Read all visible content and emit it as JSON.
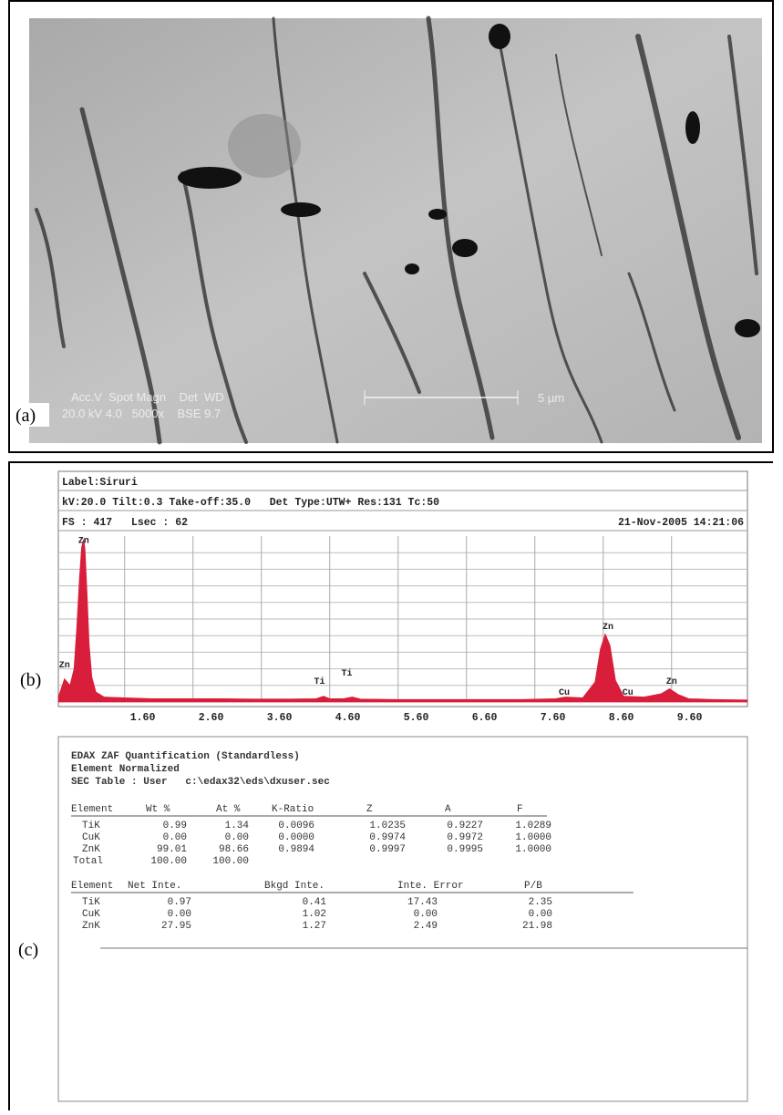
{
  "panels": {
    "a": "(a)",
    "b": "(b)",
    "c": "(c)"
  },
  "sem_image": {
    "header": "Acc.V  Spot Magn    Det  WD",
    "values": "20.0 kV 4.0   5000x    BSE 9.7",
    "scale_bar": "5 µm"
  },
  "chart_data": {
    "type": "area",
    "header": {
      "label": "Label:Siruri",
      "settings": "kV:20.0 Tilt:0.3 Take-off:35.0   Det Type:UTW+ Res:131 Tc:50",
      "acquisition": "FS : 417   Lsec : 62",
      "date": "21-Nov-2005 14:21:06"
    },
    "x": [
      0.63,
      0.72,
      0.8,
      0.86,
      0.9,
      0.94,
      0.97,
      1.0,
      1.02,
      1.05,
      1.08,
      1.12,
      1.18,
      1.3,
      1.6,
      2.0,
      2.5,
      3.0,
      3.5,
      4.0,
      4.4,
      4.51,
      4.6,
      4.8,
      4.93,
      5.05,
      5.6,
      6.2,
      6.8,
      7.4,
      7.9,
      8.05,
      8.3,
      8.48,
      8.56,
      8.63,
      8.7,
      8.78,
      8.9,
      9.2,
      9.45,
      9.57,
      9.7,
      9.85,
      10.2,
      10.71
    ],
    "values": [
      0.3,
      1.4,
      1.0,
      2.0,
      4.5,
      7.5,
      9.3,
      9.8,
      9.2,
      6.5,
      3.5,
      1.5,
      0.6,
      0.3,
      0.25,
      0.2,
      0.2,
      0.2,
      0.18,
      0.18,
      0.2,
      0.35,
      0.2,
      0.2,
      0.3,
      0.18,
      0.15,
      0.15,
      0.15,
      0.15,
      0.2,
      0.3,
      0.25,
      1.2,
      3.2,
      4.1,
      3.4,
      1.3,
      0.35,
      0.3,
      0.5,
      0.8,
      0.45,
      0.2,
      0.15,
      0.12
    ],
    "color": "#d81e3a",
    "xlim": [
      0.63,
      10.71
    ],
    "ylim": [
      0,
      10
    ],
    "xticks": [
      {
        "value": 1.6,
        "label": "1.60"
      },
      {
        "value": 2.6,
        "label": "2.60"
      },
      {
        "value": 3.6,
        "label": "3.60"
      },
      {
        "value": 4.6,
        "label": "4.60"
      },
      {
        "value": 5.6,
        "label": "5.60"
      },
      {
        "value": 6.6,
        "label": "6.60"
      },
      {
        "value": 7.6,
        "label": "7.60"
      },
      {
        "value": 8.6,
        "label": "8.60"
      },
      {
        "value": 9.6,
        "label": "9.60"
      }
    ],
    "grid": true,
    "annotations": [
      {
        "text": "Zn",
        "x": 1.0,
        "y": 9.6
      },
      {
        "text": "Zn",
        "x": 0.72,
        "y": 2.1
      },
      {
        "text": "Ti",
        "x": 4.45,
        "y": 1.1
      },
      {
        "text": "Ti",
        "x": 4.85,
        "y": 1.6
      },
      {
        "text": "Cu",
        "x": 8.03,
        "y": 0.45
      },
      {
        "text": "Zn",
        "x": 8.67,
        "y": 4.4
      },
      {
        "text": "Cu",
        "x": 8.96,
        "y": 0.45
      },
      {
        "text": "Zn",
        "x": 9.6,
        "y": 1.1
      }
    ]
  },
  "quantification": {
    "title": "EDAX ZAF Quantification (Standardless)",
    "mode": "Element Normalized",
    "sec_table": "SEC Table : User   c:\\edax32\\eds\\dxuser.sec",
    "table1": {
      "columns": [
        "Element",
        "Wt %",
        "At %",
        "K-Ratio",
        "Z",
        "A",
        "F"
      ],
      "rows": [
        [
          "TiK",
          "0.99",
          "1.34",
          "0.0096",
          "1.0235",
          "0.9227",
          "1.0289"
        ],
        [
          "CuK",
          "0.00",
          "0.00",
          "0.0000",
          "0.9974",
          "0.9972",
          "1.0000"
        ],
        [
          "ZnK",
          "99.01",
          "98.66",
          "0.9894",
          "0.9997",
          "0.9995",
          "1.0000"
        ],
        [
          "Total",
          "100.00",
          "100.00"
        ]
      ]
    },
    "table2": {
      "columns": [
        "Element",
        "Net Inte.",
        "Bkgd Inte.",
        "Inte. Error",
        "P/B"
      ],
      "rows": [
        [
          "TiK",
          "0.97",
          "0.41",
          "17.43",
          "2.35"
        ],
        [
          "CuK",
          "0.00",
          "1.02",
          "0.00",
          "0.00"
        ],
        [
          "ZnK",
          "27.95",
          "1.27",
          "2.49",
          "21.98"
        ]
      ]
    }
  }
}
